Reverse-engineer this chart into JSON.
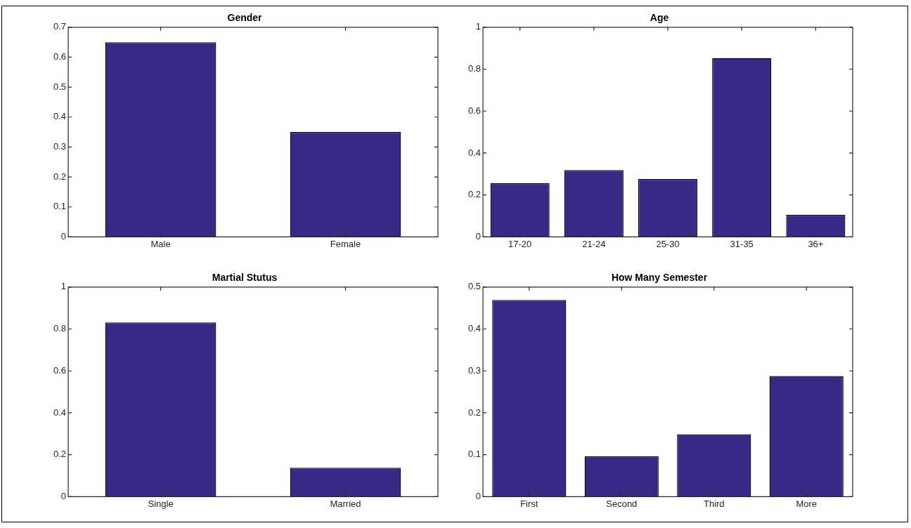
{
  "chart_data": [
    {
      "type": "bar",
      "title": "Gender",
      "categories": [
        "Male",
        "Female"
      ],
      "values": [
        0.65,
        0.35
      ],
      "color": "#362a86",
      "ylim": [
        0,
        0.7
      ],
      "yticks": [
        0,
        0.1,
        0.2,
        0.3,
        0.4,
        0.5,
        0.6,
        0.7
      ],
      "grid": false
    },
    {
      "type": "bar",
      "title": "Age",
      "categories": [
        "17-20",
        "21-24",
        "25-30",
        "31-35",
        "36+"
      ],
      "values": [
        0.256,
        0.319,
        0.276,
        0.853,
        0.105
      ],
      "color": "#362a86",
      "ylim": [
        0,
        1
      ],
      "yticks": [
        0,
        0.2,
        0.4,
        0.6,
        0.8,
        1
      ],
      "grid": false
    },
    {
      "type": "bar",
      "title": "Martial Stutus",
      "categories": [
        "Single",
        "Married"
      ],
      "values": [
        0.831,
        0.138
      ],
      "color": "#362a86",
      "ylim": [
        0,
        1
      ],
      "yticks": [
        0,
        0.2,
        0.4,
        0.6,
        0.8,
        1
      ],
      "grid": false
    },
    {
      "type": "bar",
      "title": "How Many Semester",
      "categories": [
        "First",
        "Second",
        "Third",
        "More"
      ],
      "values": [
        0.469,
        0.096,
        0.149,
        0.288
      ],
      "color": "#362a86",
      "ylim": [
        0,
        0.5
      ],
      "yticks": [
        0,
        0.1,
        0.2,
        0.3,
        0.4,
        0.5
      ],
      "grid": false
    }
  ]
}
